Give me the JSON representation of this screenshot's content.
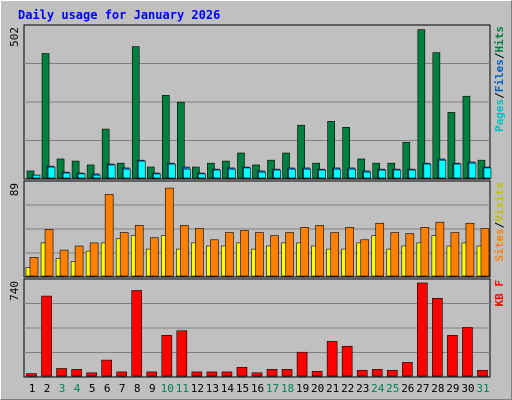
{
  "title": "Daily usage for January 2026",
  "colors": {
    "background": "#c0c0c0",
    "title": "#0000ff",
    "grid": "#808080",
    "hits": "#008040",
    "files": "#0080ff",
    "pages": "#00ffff",
    "visits": "#ffff00",
    "sites": "#ff8000",
    "kbytes": "#ff0000",
    "weekend_label": "#00805c",
    "weekday_label": "#000000"
  },
  "chart_data": [
    {
      "type": "bar",
      "name": "hits-files-pages",
      "ymax_label": "502",
      "ylim": [
        0,
        502
      ],
      "legend": [
        {
          "text": "Pages",
          "color": "#00c0c0"
        },
        {
          "text": "/",
          "color": "#000000"
        },
        {
          "text": "Files",
          "color": "#0060c0"
        },
        {
          "text": "/",
          "color": "#000000"
        },
        {
          "text": "Hits",
          "color": "#008040"
        }
      ],
      "categories": [
        "1",
        "2",
        "3",
        "4",
        "5",
        "6",
        "7",
        "8",
        "9",
        "10",
        "11",
        "12",
        "13",
        "14",
        "15",
        "16",
        "17",
        "18",
        "19",
        "20",
        "21",
        "22",
        "23",
        "24",
        "25",
        "26",
        "27",
        "28",
        "29",
        "30",
        "31"
      ],
      "series": [
        {
          "name": "Hits",
          "values": [
            27,
            420,
            67,
            60,
            47,
            167,
            53,
            443,
            40,
            280,
            257,
            40,
            53,
            60,
            87,
            47,
            63,
            87,
            180,
            53,
            193,
            173,
            67,
            53,
            53,
            123,
            500,
            423,
            223,
            277,
            63
          ]
        },
        {
          "name": "Files",
          "values": [
            13,
            43,
            23,
            20,
            17,
            50,
            37,
            63,
            20,
            53,
            40,
            20,
            33,
            37,
            40,
            27,
            33,
            37,
            37,
            33,
            37,
            37,
            27,
            33,
            33,
            33,
            53,
            67,
            53,
            57,
            40
          ]
        },
        {
          "name": "Pages",
          "values": [
            13,
            40,
            20,
            17,
            13,
            47,
            33,
            60,
            17,
            50,
            33,
            17,
            30,
            33,
            37,
            23,
            30,
            33,
            33,
            30,
            33,
            33,
            23,
            30,
            30,
            30,
            50,
            63,
            50,
            53,
            37
          ]
        }
      ]
    },
    {
      "type": "bar",
      "name": "visits-sites",
      "ymax_label": "89",
      "ylim": [
        0,
        89
      ],
      "legend": [
        {
          "text": "Sites",
          "color": "#ff8000"
        },
        {
          "text": "/",
          "color": "#000000"
        },
        {
          "text": "Visits",
          "color": "#c0c000"
        }
      ],
      "categories": [
        "1",
        "2",
        "3",
        "4",
        "5",
        "6",
        "7",
        "8",
        "9",
        "10",
        "11",
        "12",
        "13",
        "14",
        "15",
        "16",
        "17",
        "18",
        "19",
        "20",
        "21",
        "22",
        "23",
        "24",
        "25",
        "26",
        "27",
        "28",
        "29",
        "30",
        "31"
      ],
      "series": [
        {
          "name": "Visits",
          "values": [
            9,
            33,
            18,
            15,
            25,
            33,
            37,
            40,
            27,
            40,
            27,
            33,
            30,
            30,
            33,
            27,
            30,
            33,
            33,
            30,
            27,
            27,
            33,
            40,
            27,
            30,
            33,
            40,
            30,
            33,
            30
          ]
        },
        {
          "name": "Sites",
          "values": [
            19,
            46,
            26,
            30,
            33,
            80,
            43,
            50,
            38,
            86,
            50,
            47,
            36,
            43,
            45,
            43,
            40,
            43,
            48,
            50,
            43,
            48,
            36,
            52,
            43,
            42,
            48,
            53,
            43,
            52,
            47
          ]
        }
      ]
    },
    {
      "type": "bar",
      "name": "kbytes",
      "ymax_label": "740",
      "ylim": [
        0,
        740
      ],
      "legend": [
        {
          "text": "KB F",
          "color": "#ff0000"
        }
      ],
      "categories": [
        "1",
        "2",
        "3",
        "4",
        "5",
        "6",
        "7",
        "8",
        "9",
        "10",
        "11",
        "12",
        "13",
        "14",
        "15",
        "16",
        "17",
        "18",
        "19",
        "20",
        "21",
        "22",
        "23",
        "24",
        "25",
        "26",
        "27",
        "28",
        "29",
        "30",
        "31"
      ],
      "series": [
        {
          "name": "KB F",
          "values": [
            27,
            637,
            67,
            60,
            33,
            133,
            40,
            681,
            40,
            328,
            364,
            40,
            40,
            40,
            76,
            33,
            60,
            60,
            195,
            45,
            280,
            242,
            53,
            60,
            53,
            115,
            740,
            619,
            328,
            390,
            53
          ]
        }
      ]
    }
  ],
  "x_labels": [
    {
      "text": "1",
      "weekend": false
    },
    {
      "text": "2",
      "weekend": false
    },
    {
      "text": "3",
      "weekend": true
    },
    {
      "text": "4",
      "weekend": true
    },
    {
      "text": "5",
      "weekend": false
    },
    {
      "text": "6",
      "weekend": false
    },
    {
      "text": "7",
      "weekend": false
    },
    {
      "text": "8",
      "weekend": false
    },
    {
      "text": "9",
      "weekend": false
    },
    {
      "text": "10",
      "weekend": true
    },
    {
      "text": "11",
      "weekend": true
    },
    {
      "text": "12",
      "weekend": false
    },
    {
      "text": "13",
      "weekend": false
    },
    {
      "text": "14",
      "weekend": false
    },
    {
      "text": "15",
      "weekend": false
    },
    {
      "text": "16",
      "weekend": false
    },
    {
      "text": "17",
      "weekend": true
    },
    {
      "text": "18",
      "weekend": true
    },
    {
      "text": "19",
      "weekend": false
    },
    {
      "text": "20",
      "weekend": false
    },
    {
      "text": "21",
      "weekend": false
    },
    {
      "text": "22",
      "weekend": false
    },
    {
      "text": "23",
      "weekend": false
    },
    {
      "text": "24",
      "weekend": true
    },
    {
      "text": "25",
      "weekend": true
    },
    {
      "text": "26",
      "weekend": false
    },
    {
      "text": "27",
      "weekend": false
    },
    {
      "text": "28",
      "weekend": false
    },
    {
      "text": "29",
      "weekend": false
    },
    {
      "text": "30",
      "weekend": false
    },
    {
      "text": "31",
      "weekend": true
    }
  ]
}
